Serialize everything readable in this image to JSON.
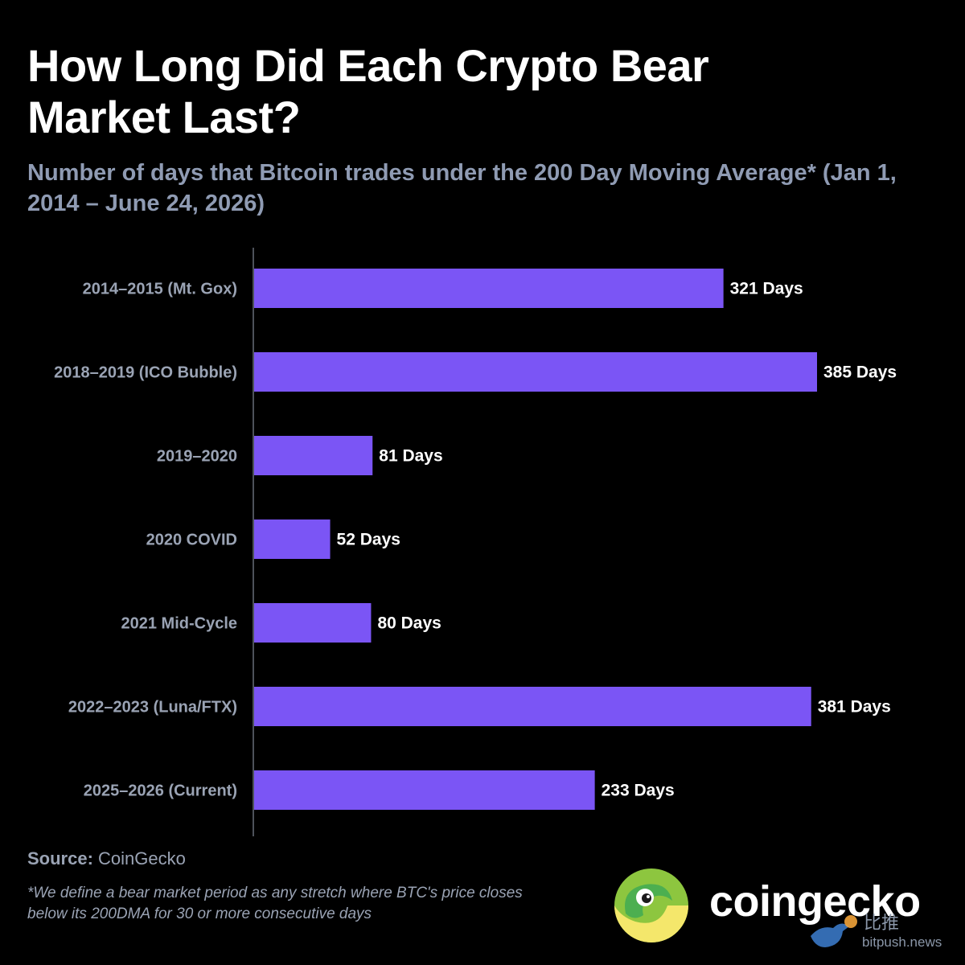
{
  "title": "How Long Did Each Crypto Bear Market Last?",
  "subtitle": "Number of days that Bitcoin trades under the 200 Day Moving Average* (Jan 1, 2014 – June 24, 2026)",
  "source_label": "Source:",
  "source_value": "CoinGecko",
  "footnote": "*We define a bear market period as any stretch where BTC's price closes below its 200DMA for 30 or more consecutive days",
  "logo_text": "coingecko",
  "watermark": {
    "cn": "比推",
    "url": "bitpush.news"
  },
  "colors": {
    "bar": "#7b55f5",
    "background": "#000000",
    "label": "#9aa3b4",
    "value": "#ffffff",
    "subtitle": "#8f9bb3"
  },
  "chart_data": {
    "type": "bar",
    "orientation": "horizontal",
    "title": "How Long Did Each Crypto Bear Market Last?",
    "subtitle": "Number of days that Bitcoin trades under the 200 Day Moving Average* (Jan 1, 2014 – June 24, 2026)",
    "categories": [
      "2014–2015 (Mt. Gox)",
      "2018–2019 (ICO Bubble)",
      "2019–2020",
      "2020 COVID",
      "2021 Mid-Cycle",
      "2022–2023 (Luna/FTX)",
      "2025–2026 (Current)"
    ],
    "values": [
      321,
      385,
      81,
      52,
      80,
      381,
      233
    ],
    "value_labels": [
      "321 Days",
      "385 Days",
      "81 Days",
      "52 Days",
      "80 Days",
      "381 Days",
      "233 Days"
    ],
    "xlim": [
      0,
      385
    ],
    "grid": false,
    "legend": "none"
  }
}
